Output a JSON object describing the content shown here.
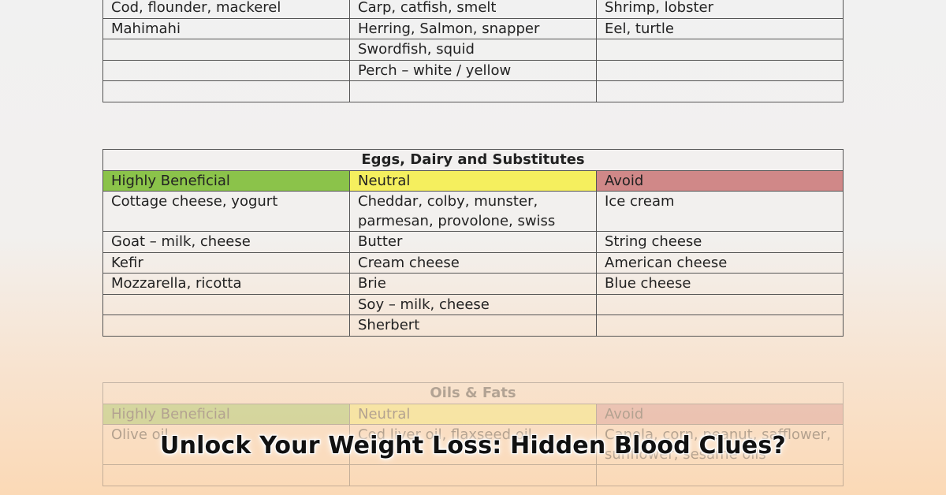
{
  "fish_table": {
    "rows": [
      [
        "Cod, flounder, mackerel",
        "Carp, catfish, smelt",
        "Shrimp, lobster"
      ],
      [
        "Mahimahi",
        "Herring, Salmon, snapper",
        "Eel, turtle"
      ],
      [
        "",
        "Swordfish, squid",
        ""
      ],
      [
        "",
        "Perch – white / yellow",
        ""
      ],
      [
        "",
        "",
        ""
      ]
    ]
  },
  "dairy_table": {
    "title": "Eggs, Dairy and Substitutes",
    "headers": {
      "beneficial": "Highly Beneficial",
      "neutral": "Neutral",
      "avoid": "Avoid"
    },
    "rows": [
      [
        "Cottage cheese, yogurt",
        "Cheddar, colby, munster, parmesan, provolone, swiss",
        "Ice cream"
      ],
      [
        "Goat – milk, cheese",
        "Butter",
        "String cheese"
      ],
      [
        "Kefir",
        "Cream cheese",
        "American cheese"
      ],
      [
        "Mozzarella, ricotta",
        "Brie",
        "Blue cheese"
      ],
      [
        "",
        "Soy – milk, cheese",
        ""
      ],
      [
        "",
        "Sherbert",
        ""
      ]
    ]
  },
  "oils_table": {
    "title": "Oils & Fats",
    "headers": {
      "beneficial": "Highly Beneficial",
      "neutral": "Neutral",
      "avoid": "Avoid"
    },
    "rows": [
      [
        "Olive oil",
        "Cod liver oil, flaxseed oil",
        "Canola, corn, peanut, safflower, sunflower, sesame oils"
      ],
      [
        "",
        "",
        ""
      ]
    ]
  },
  "overlay_headline": "Unlock Your Weight Loss:  Hidden Blood Clues?",
  "colors": {
    "beneficial": "#8bc34a",
    "neutral": "#f5ef5e",
    "avoid": "#d08888"
  }
}
